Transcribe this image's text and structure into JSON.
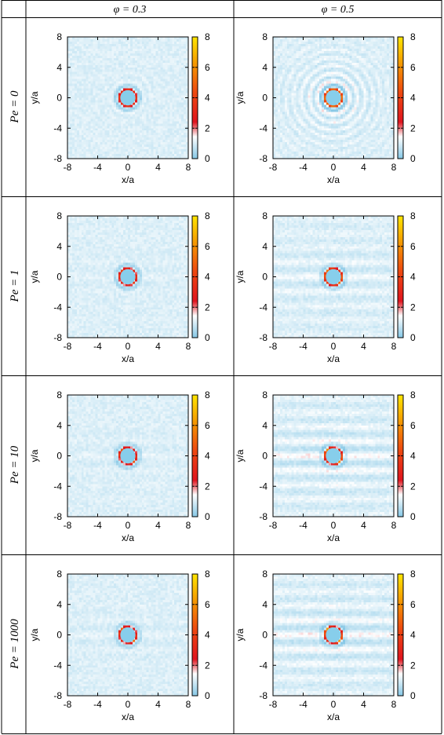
{
  "table": {
    "column_headers": [
      "φ = 0.3",
      "φ = 0.5"
    ],
    "row_headers": [
      "Pe = 0",
      "Pe = 1",
      "Pe = 10",
      "Pe = 1000"
    ]
  },
  "colors": {
    "low": "#87c8e6",
    "mid": "#ffffff",
    "high": "#e0141e",
    "top": "#ffe600",
    "particle": "#87ceeb",
    "grid_line": "#000000"
  },
  "chart_data": [
    {
      "type": "heatmap",
      "column": "φ = 0.3",
      "row": "Pe = 0",
      "xlabel": "x/a",
      "ylabel": "y/a",
      "xlim": [
        -8,
        8
      ],
      "ylim": [
        -8,
        8
      ],
      "xticks": [
        -8,
        -4,
        0,
        4,
        8
      ],
      "yticks": [
        -8,
        -4,
        0,
        4,
        8
      ],
      "colorbar": {
        "range": [
          0,
          8
        ],
        "ticks": [
          0,
          2,
          4,
          6,
          8
        ]
      },
      "particle_radius": 1,
      "ring_peak": 3.2,
      "anisotropy": 0,
      "fringes": 2
    },
    {
      "type": "heatmap",
      "column": "φ = 0.5",
      "row": "Pe = 0",
      "xlabel": "x/a",
      "ylabel": "y/a",
      "xlim": [
        -8,
        8
      ],
      "ylim": [
        -8,
        8
      ],
      "xticks": [
        -8,
        -4,
        0,
        4,
        8
      ],
      "yticks": [
        -8,
        -4,
        0,
        4,
        8
      ],
      "colorbar": {
        "range": [
          0,
          8
        ],
        "ticks": [
          0,
          2,
          4,
          6,
          8
        ]
      },
      "particle_radius": 1,
      "ring_peak": 4.5,
      "anisotropy": 0,
      "fringes": 4
    },
    {
      "type": "heatmap",
      "column": "φ = 0.3",
      "row": "Pe = 1",
      "xlabel": "x/a",
      "ylabel": "y/a",
      "xlim": [
        -8,
        8
      ],
      "ylim": [
        -8,
        8
      ],
      "xticks": [
        -8,
        -4,
        0,
        4,
        8
      ],
      "yticks": [
        -8,
        -4,
        0,
        4,
        8
      ],
      "colorbar": {
        "range": [
          0,
          8
        ],
        "ticks": [
          0,
          2,
          4,
          6,
          8
        ]
      },
      "particle_radius": 1,
      "ring_peak": 3.5,
      "anisotropy": 0.5,
      "fringes": 2
    },
    {
      "type": "heatmap",
      "column": "φ = 0.5",
      "row": "Pe = 1",
      "xlabel": "x/a",
      "ylabel": "y/a",
      "xlim": [
        -8,
        8
      ],
      "ylim": [
        -8,
        8
      ],
      "xticks": [
        -8,
        -4,
        0,
        4,
        8
      ],
      "yticks": [
        -8,
        -4,
        0,
        4,
        8
      ],
      "colorbar": {
        "range": [
          0,
          8
        ],
        "ticks": [
          0,
          2,
          4,
          6,
          8
        ]
      },
      "particle_radius": 1,
      "ring_peak": 4.8,
      "anisotropy": 0.6,
      "fringes": 3
    },
    {
      "type": "heatmap",
      "column": "φ = 0.3",
      "row": "Pe = 10",
      "xlabel": "x/a",
      "ylabel": "y/a",
      "xlim": [
        -8,
        8
      ],
      "ylim": [
        -8,
        8
      ],
      "xticks": [
        -8,
        -4,
        0,
        4,
        8
      ],
      "yticks": [
        -8,
        -4,
        0,
        4,
        8
      ],
      "colorbar": {
        "range": [
          0,
          8
        ],
        "ticks": [
          0,
          2,
          4,
          6,
          8
        ]
      },
      "particle_radius": 1,
      "ring_peak": 4.0,
      "anisotropy": 0.9,
      "fringes": 2
    },
    {
      "type": "heatmap",
      "column": "φ = 0.5",
      "row": "Pe = 10",
      "xlabel": "x/a",
      "ylabel": "y/a",
      "xlim": [
        -8,
        8
      ],
      "ylim": [
        -8,
        8
      ],
      "xticks": [
        -8,
        -4,
        0,
        4,
        8
      ],
      "yticks": [
        -8,
        -4,
        0,
        4,
        8
      ],
      "colorbar": {
        "range": [
          0,
          8
        ],
        "ticks": [
          0,
          2,
          4,
          6,
          8
        ]
      },
      "particle_radius": 1,
      "ring_peak": 5.0,
      "anisotropy": 1.0,
      "fringes": 4
    },
    {
      "type": "heatmap",
      "column": "φ = 0.3",
      "row": "Pe = 1000",
      "xlabel": "x/a",
      "ylabel": "y/a",
      "xlim": [
        -8,
        8
      ],
      "ylim": [
        -8,
        8
      ],
      "xticks": [
        -8,
        -4,
        0,
        4,
        8
      ],
      "yticks": [
        -8,
        -4,
        0,
        4,
        8
      ],
      "colorbar": {
        "range": [
          0,
          8
        ],
        "ticks": [
          0,
          2,
          4,
          6,
          8
        ]
      },
      "particle_radius": 1,
      "ring_peak": 4.2,
      "anisotropy": 1.0,
      "fringes": 2
    },
    {
      "type": "heatmap",
      "column": "φ = 0.5",
      "row": "Pe = 1000",
      "xlabel": "x/a",
      "ylabel": "y/a",
      "xlim": [
        -8,
        8
      ],
      "ylim": [
        -8,
        8
      ],
      "xticks": [
        -8,
        -4,
        0,
        4,
        8
      ],
      "yticks": [
        -8,
        -4,
        0,
        4,
        8
      ],
      "colorbar": {
        "range": [
          0,
          8
        ],
        "ticks": [
          0,
          2,
          4,
          6,
          8
        ]
      },
      "particle_radius": 1,
      "ring_peak": 5.2,
      "anisotropy": 1.0,
      "fringes": 4
    }
  ]
}
